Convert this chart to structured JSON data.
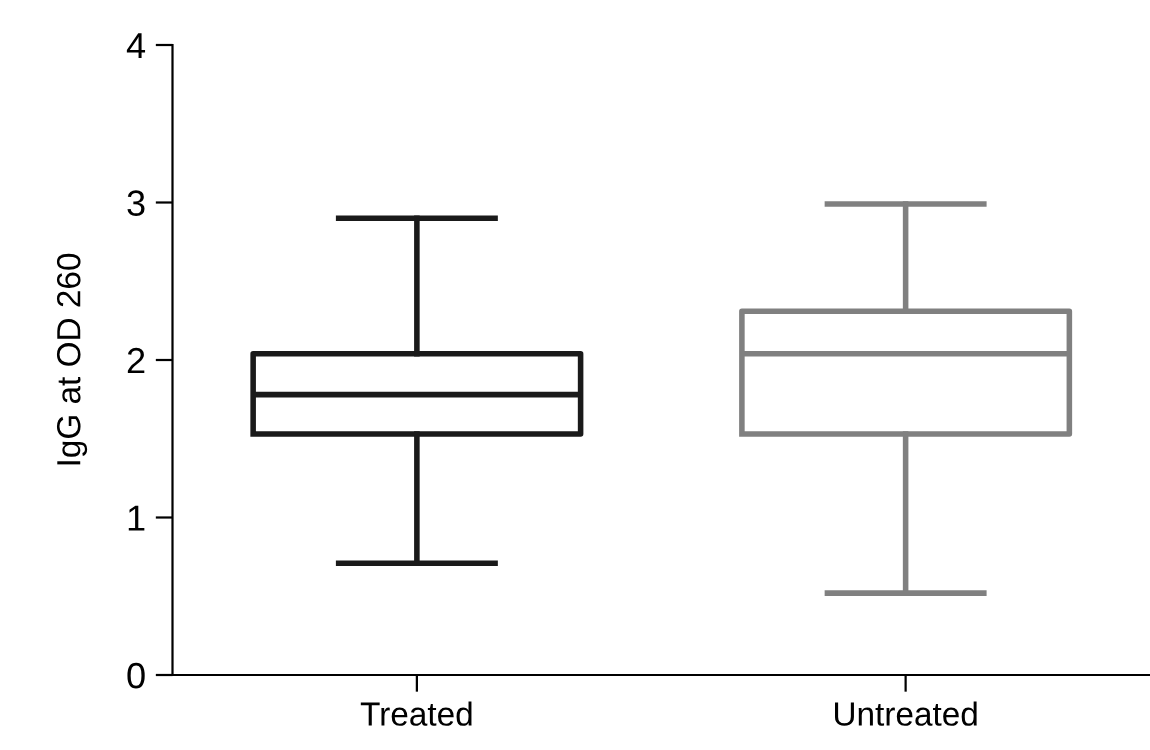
{
  "chart_data": {
    "type": "box",
    "ylabel": "IgG at OD 260",
    "categories": [
      "Treated",
      "Untreated"
    ],
    "colors": [
      "#1a1a1a",
      "#808080"
    ],
    "boxes": [
      {
        "low": 0.71,
        "q1": 1.53,
        "median": 1.78,
        "q3": 2.04,
        "high": 2.9
      },
      {
        "low": 0.52,
        "q1": 1.53,
        "median": 2.04,
        "q3": 2.31,
        "high": 2.99
      }
    ],
    "ylim": [
      0,
      4
    ],
    "yticks": [
      0,
      1,
      2,
      3,
      4
    ],
    "grid": false
  }
}
